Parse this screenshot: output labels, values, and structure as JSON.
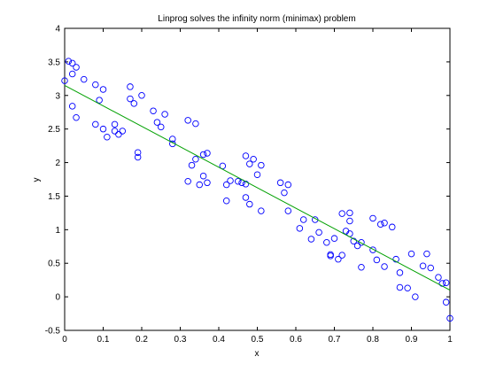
{
  "chart_data": {
    "type": "scatter",
    "title": "Linprog solves the infinity norm (minimax) problem",
    "xlabel": "x",
    "ylabel": "y",
    "xlim": [
      0,
      1
    ],
    "ylim": [
      -0.5,
      4
    ],
    "xticks": [
      "0",
      "0.1",
      "0.2",
      "0.3",
      "0.4",
      "0.5",
      "0.6",
      "0.7",
      "0.8",
      "0.9",
      "1"
    ],
    "yticks": [
      "-0.5",
      "0",
      "0.5",
      "1",
      "1.5",
      "2",
      "2.5",
      "3",
      "3.5",
      "4"
    ],
    "grid": false,
    "legend": "none",
    "series": [
      {
        "kind": "scatter",
        "marker": "circle-open",
        "color": "#0000ff",
        "points": [
          [
            0.0,
            3.22
          ],
          [
            0.01,
            3.51
          ],
          [
            0.02,
            3.48
          ],
          [
            0.02,
            2.84
          ],
          [
            0.02,
            3.32
          ],
          [
            0.03,
            3.42
          ],
          [
            0.03,
            2.67
          ],
          [
            0.05,
            3.24
          ],
          [
            0.08,
            3.16
          ],
          [
            0.08,
            2.57
          ],
          [
            0.09,
            2.93
          ],
          [
            0.1,
            2.5
          ],
          [
            0.1,
            3.09
          ],
          [
            0.11,
            2.38
          ],
          [
            0.13,
            2.47
          ],
          [
            0.13,
            2.57
          ],
          [
            0.14,
            2.42
          ],
          [
            0.15,
            2.47
          ],
          [
            0.17,
            3.13
          ],
          [
            0.17,
            2.95
          ],
          [
            0.18,
            2.88
          ],
          [
            0.19,
            2.08
          ],
          [
            0.19,
            2.15
          ],
          [
            0.2,
            3.0
          ],
          [
            0.23,
            2.77
          ],
          [
            0.24,
            2.6
          ],
          [
            0.25,
            2.53
          ],
          [
            0.26,
            2.72
          ],
          [
            0.28,
            2.35
          ],
          [
            0.28,
            2.28
          ],
          [
            0.32,
            1.72
          ],
          [
            0.32,
            2.63
          ],
          [
            0.33,
            1.96
          ],
          [
            0.34,
            2.58
          ],
          [
            0.34,
            2.05
          ],
          [
            0.35,
            1.67
          ],
          [
            0.36,
            1.8
          ],
          [
            0.36,
            2.12
          ],
          [
            0.37,
            1.7
          ],
          [
            0.37,
            2.14
          ],
          [
            0.41,
            1.95
          ],
          [
            0.42,
            1.67
          ],
          [
            0.42,
            1.43
          ],
          [
            0.43,
            1.73
          ],
          [
            0.45,
            1.72
          ],
          [
            0.46,
            1.7
          ],
          [
            0.47,
            1.48
          ],
          [
            0.47,
            1.68
          ],
          [
            0.47,
            2.1
          ],
          [
            0.48,
            1.98
          ],
          [
            0.48,
            1.38
          ],
          [
            0.49,
            2.05
          ],
          [
            0.5,
            1.82
          ],
          [
            0.51,
            1.96
          ],
          [
            0.51,
            1.28
          ],
          [
            0.56,
            1.7
          ],
          [
            0.57,
            1.55
          ],
          [
            0.58,
            1.67
          ],
          [
            0.58,
            1.28
          ],
          [
            0.61,
            1.02
          ],
          [
            0.62,
            1.15
          ],
          [
            0.64,
            0.86
          ],
          [
            0.65,
            1.15
          ],
          [
            0.66,
            0.96
          ],
          [
            0.68,
            0.81
          ],
          [
            0.69,
            0.63
          ],
          [
            0.69,
            0.61
          ],
          [
            0.7,
            0.87
          ],
          [
            0.71,
            0.56
          ],
          [
            0.72,
            0.62
          ],
          [
            0.72,
            1.24
          ],
          [
            0.73,
            0.98
          ],
          [
            0.74,
            1.25
          ],
          [
            0.74,
            0.94
          ],
          [
            0.74,
            1.13
          ],
          [
            0.75,
            0.83
          ],
          [
            0.76,
            0.76
          ],
          [
            0.77,
            0.81
          ],
          [
            0.77,
            0.44
          ],
          [
            0.8,
            0.7
          ],
          [
            0.8,
            1.17
          ],
          [
            0.81,
            0.55
          ],
          [
            0.82,
            1.08
          ],
          [
            0.83,
            0.45
          ],
          [
            0.83,
            1.1
          ],
          [
            0.85,
            1.04
          ],
          [
            0.86,
            0.56
          ],
          [
            0.87,
            0.36
          ],
          [
            0.87,
            0.14
          ],
          [
            0.89,
            0.13
          ],
          [
            0.9,
            0.64
          ],
          [
            0.91,
            0.0
          ],
          [
            0.93,
            0.46
          ],
          [
            0.94,
            0.64
          ],
          [
            0.95,
            0.43
          ],
          [
            0.97,
            0.29
          ],
          [
            0.98,
            0.2
          ],
          [
            0.99,
            0.21
          ],
          [
            0.99,
            -0.08
          ],
          [
            1.0,
            -0.32
          ]
        ]
      },
      {
        "kind": "line",
        "color": "#00a000",
        "points": [
          [
            0,
            3.15
          ],
          [
            1,
            0.1
          ]
        ]
      }
    ]
  }
}
